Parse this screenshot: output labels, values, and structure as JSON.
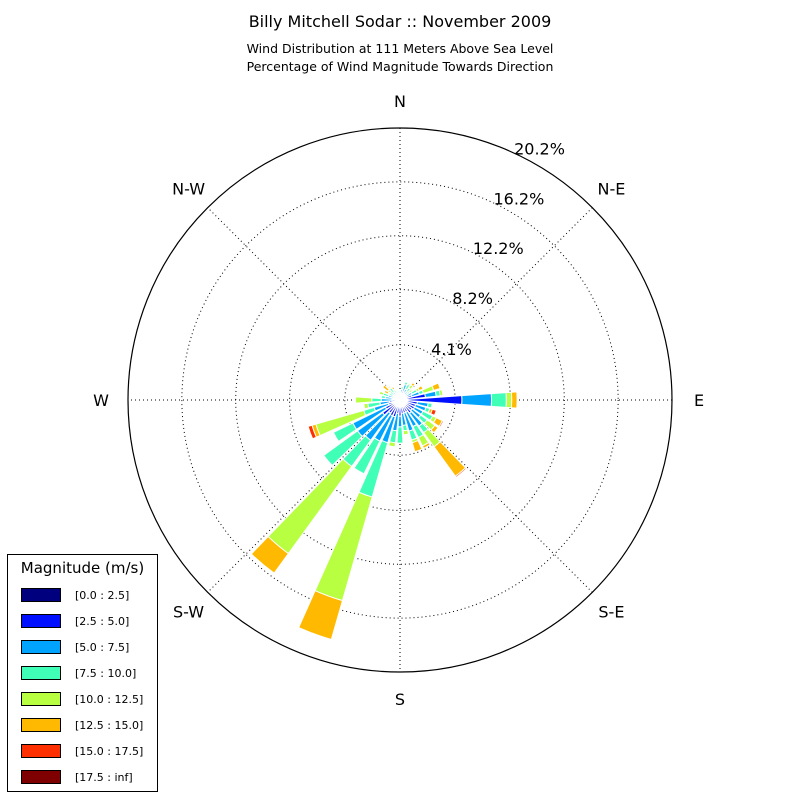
{
  "title": "Billy Mitchell Sodar :: November 2009",
  "subtitle_line1": "Wind Distribution at 111 Meters Above Sea Level",
  "subtitle_line2": "Percentage of Wind Magnitude Towards Direction",
  "legend": {
    "title": "Magnitude (m/s)",
    "items": [
      {
        "label": "[0.0 : 2.5]",
        "color": "#00007f"
      },
      {
        "label": "[2.5 : 5.0]",
        "color": "#0010ff"
      },
      {
        "label": "[5.0 : 7.5]",
        "color": "#00a4ff"
      },
      {
        "label": "[7.5 : 10.0]",
        "color": "#40ffb7"
      },
      {
        "label": "[10.0 : 12.5]",
        "color": "#b7ff40"
      },
      {
        "label": "[12.5 : 15.0]",
        "color": "#ffb900"
      },
      {
        "label": "[15.0 : 17.5]",
        "color": "#ff3000"
      },
      {
        "label": "[17.5 : inf]",
        "color": "#7f0000"
      }
    ]
  },
  "chart_data": {
    "type": "windrose",
    "title": "Billy Mitchell Sodar :: November 2009",
    "directions_labeled": [
      "N",
      "N-E",
      "E",
      "S-E",
      "S",
      "S-W",
      "W",
      "N-W"
    ],
    "radial_ticks": [
      "4.1%",
      "8.2%",
      "12.2%",
      "16.2%",
      "20.2%"
    ],
    "radial_tick_values": [
      4.1,
      8.2,
      12.2,
      16.2,
      20.2
    ],
    "radial_max": 20.2,
    "grid": true,
    "bin_direction_degrees": [
      0,
      10,
      20,
      30,
      40,
      50,
      60,
      70,
      80,
      90,
      100,
      110,
      120,
      130,
      140,
      150,
      160,
      170,
      180,
      190,
      200,
      210,
      220,
      230,
      240,
      250,
      260,
      270,
      280,
      290,
      300,
      310,
      320,
      330,
      340,
      350
    ],
    "series": [
      {
        "name": "[0.0 : 2.5]",
        "values": [
          0.2,
          0.2,
          0.2,
          0.2,
          0.2,
          0.2,
          0.2,
          0.2,
          0.3,
          0.3,
          0.3,
          0.3,
          0.3,
          0.3,
          0.3,
          0.3,
          0.2,
          0.2,
          0.2,
          0.2,
          0.3,
          0.3,
          0.3,
          0.3,
          0.3,
          0.3,
          0.2,
          0.2,
          0.2,
          0.2,
          0.2,
          0.2,
          0.2,
          0.2,
          0.2,
          0.2
        ]
      },
      {
        "name": "[2.5 : 5.0]",
        "values": [
          0.1,
          0.3,
          0.5,
          0.4,
          0.2,
          0.1,
          0.3,
          0.7,
          1.6,
          4.3,
          1.0,
          0.9,
          0.9,
          0.8,
          0.9,
          0.7,
          0.8,
          0.8,
          1.0,
          0.8,
          1.0,
          1.0,
          0.9,
          1.3,
          0.9,
          0.6,
          0.6,
          0.4,
          0.3,
          0.2,
          0.2,
          0.1,
          0.2,
          0.1,
          0.1,
          0.1
        ]
      },
      {
        "name": "[5.0 : 7.5]",
        "values": [
          0.3,
          0.3,
          0.5,
          0.3,
          0.4,
          0.4,
          0.5,
          0.6,
          0.8,
          2.2,
          0.8,
          0.8,
          0.7,
          0.8,
          1.2,
          1.2,
          1.4,
          0.9,
          0.8,
          1.3,
          2.0,
          2.1,
          2.5,
          2.3,
          2.7,
          1.1,
          0.7,
          0.8,
          0.6,
          0.5,
          0.2,
          0.3,
          0.3,
          0.3,
          0.2,
          0.3
        ]
      },
      {
        "name": "[7.5 : 10.0]",
        "values": [
          0,
          0.2,
          0.2,
          0.4,
          0.3,
          0.2,
          0.4,
          0.3,
          0.3,
          1.1,
          0.3,
          0.3,
          0.8,
          0.6,
          0.6,
          0.9,
          0.7,
          0.4,
          1.2,
          0.9,
          4.2,
          2.7,
          2.4,
          3.1,
          1.6,
          0.8,
          0.9,
          0.7,
          0.3,
          0.4,
          0.3,
          0.3,
          0.4,
          0.2,
          0.2,
          0.1
        ]
      },
      {
        "name": "[10.0 : 12.5]",
        "values": [
          0,
          0,
          0,
          0.1,
          0.3,
          0.2,
          0.2,
          0.8,
          0.2,
          0.4,
          0,
          0,
          0.3,
          0.7,
          1.3,
          0.7,
          0.2,
          0.3,
          0,
          0.3,
          8.0,
          0,
          8.0,
          0,
          0,
          3.7,
          0.3,
          1.2,
          0,
          0.3,
          0.1,
          0.2,
          0.1,
          0.1,
          0,
          0
        ]
      },
      {
        "name": "[12.5 : 15.0]",
        "values": [
          0,
          0,
          0,
          0,
          0.2,
          0.1,
          0.3,
          0.5,
          0,
          0.4,
          0,
          0.2,
          0.5,
          0.3,
          2.7,
          0.2,
          0.7,
          0,
          0,
          0,
          3.0,
          0,
          1.8,
          0,
          0,
          0.3,
          0,
          0,
          0,
          0,
          0.3,
          0.5,
          0.1,
          0.2,
          0,
          0
        ]
      },
      {
        "name": "[15.0 : 17.5]",
        "values": [
          0,
          0,
          0,
          0,
          0,
          0,
          0,
          0,
          0,
          0,
          0,
          0.3,
          0.1,
          0,
          0.1,
          0,
          0,
          0,
          0,
          0,
          0,
          0,
          0,
          0,
          0,
          0.3,
          0,
          0,
          0,
          0,
          0,
          0,
          0,
          0,
          0,
          0
        ]
      },
      {
        "name": "[17.5 : inf]",
        "values": [
          0,
          0,
          0,
          0,
          0,
          0,
          0,
          0,
          0,
          0,
          0,
          0,
          0,
          0,
          0,
          0,
          0,
          0,
          0,
          0,
          0,
          0,
          0,
          0,
          0,
          0,
          0,
          0,
          0,
          0,
          0,
          0,
          0,
          0,
          0,
          0
        ]
      }
    ]
  }
}
